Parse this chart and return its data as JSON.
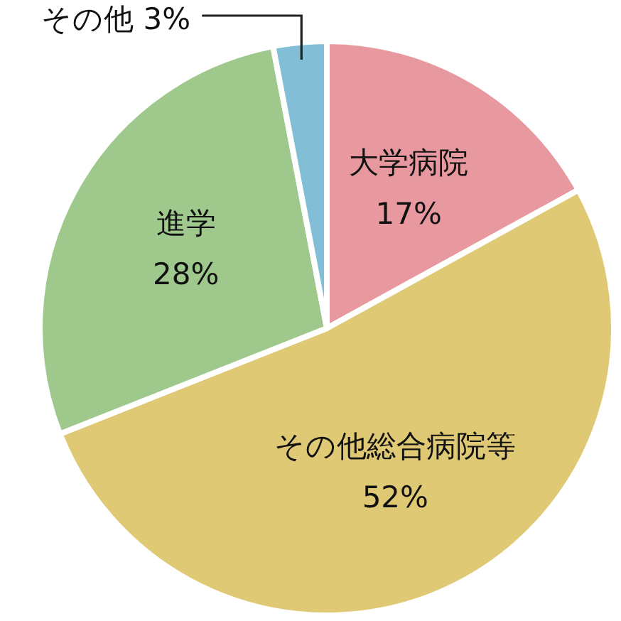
{
  "chart_data": {
    "type": "pie",
    "categories": [
      "大学病院",
      "その他総合病院等",
      "進学",
      "その他"
    ],
    "values": [
      17,
      52,
      28,
      3
    ],
    "colors": [
      "#e8999f",
      "#dfc974",
      "#9fc88c",
      "#83bed7"
    ],
    "value_labels": [
      "17%",
      "52%",
      "28%",
      "3%"
    ]
  }
}
